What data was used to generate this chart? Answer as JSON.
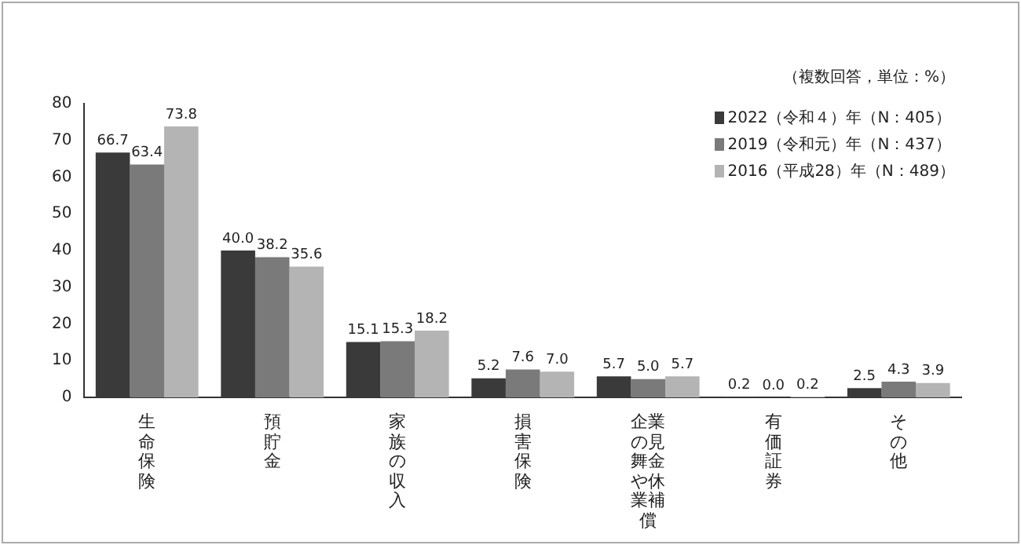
{
  "chart_data": {
    "type": "bar",
    "categories": [
      "生命保険",
      "預貯金",
      "家族の収入",
      "損害保険",
      "企業の見舞金や休業補償",
      "有価証券",
      "その他"
    ],
    "series": [
      {
        "name": "2022（令和４）年（N：405）",
        "color": "#3a3a3a",
        "values": [
          66.7,
          40.0,
          15.1,
          5.2,
          5.7,
          0.2,
          2.5
        ],
        "value_labels": [
          "66.7",
          "40.0",
          "15.1",
          "5.2",
          "5.7",
          "0.2",
          "2.5"
        ]
      },
      {
        "name": "2019（令和元）年（N：437）",
        "color": "#7a7a7a",
        "values": [
          63.4,
          38.2,
          15.3,
          7.6,
          5.0,
          0.0,
          4.3
        ],
        "value_labels": [
          "63.4",
          "38.2",
          "15.3",
          "7.6",
          "5.0",
          "0.0",
          "4.3"
        ]
      },
      {
        "name": "2016（平成28）年（N：489）",
        "color": "#b4b4b4",
        "values": [
          73.8,
          35.6,
          18.2,
          7.0,
          5.7,
          0.2,
          3.9
        ],
        "value_labels": [
          "73.8",
          "35.6",
          "18.2",
          "7.0",
          "5.7",
          "0.2",
          "3.9"
        ]
      }
    ],
    "ylim": [
      0,
      80
    ],
    "yticks": [
      0,
      10,
      20,
      30,
      40,
      50,
      60,
      70,
      80
    ],
    "grid": false,
    "legend": "top right",
    "annotations": [
      "（複数回答，単位：%）"
    ]
  }
}
